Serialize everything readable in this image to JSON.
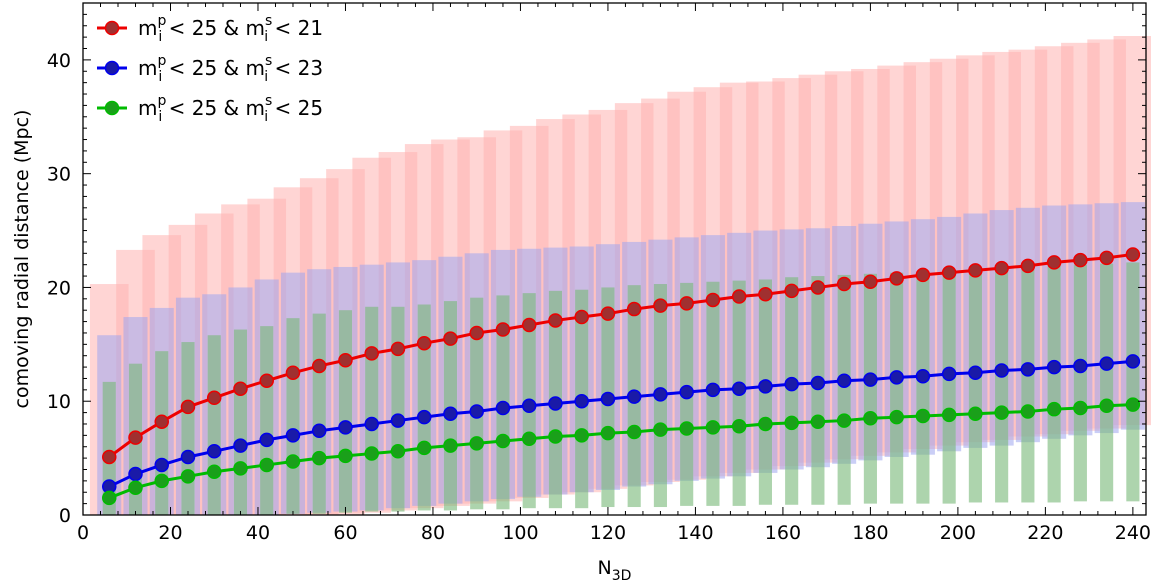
{
  "chart_data": {
    "type": "line",
    "xlabel": "N",
    "xlabel_sub": "3D",
    "ylabel": "comoving radial distance (Mpc)",
    "xlim": [
      0,
      243
    ],
    "ylim": [
      0,
      45
    ],
    "xticks": [
      0,
      20,
      40,
      60,
      80,
      100,
      120,
      140,
      160,
      180,
      200,
      220,
      240
    ],
    "yticks": [
      0,
      10,
      20,
      30,
      40
    ],
    "x": [
      6,
      12,
      18,
      24,
      30,
      36,
      42,
      48,
      54,
      60,
      66,
      72,
      78,
      84,
      90,
      96,
      102,
      108,
      114,
      120,
      126,
      132,
      138,
      144,
      150,
      156,
      162,
      168,
      174,
      180,
      186,
      192,
      198,
      204,
      210,
      216,
      222,
      228,
      234,
      240
    ],
    "series": [
      {
        "name": "m_i^p < 25 & m_i^s < 21",
        "legend_main": "m",
        "legend_sub": "i",
        "legend_sup1": "p",
        "legend_mid": " < 25 & m",
        "legend_sub2": "i",
        "legend_sup2": "s",
        "legend_end": " < 21",
        "color": "#ee0000",
        "marker_color": "#a03030",
        "band_color": "#ffb3b0",
        "values": [
          5.1,
          6.8,
          8.2,
          9.5,
          10.3,
          11.1,
          11.8,
          12.5,
          13.1,
          13.6,
          14.2,
          14.6,
          15.1,
          15.5,
          16.0,
          16.3,
          16.7,
          17.1,
          17.4,
          17.7,
          18.1,
          18.4,
          18.6,
          18.9,
          19.2,
          19.4,
          19.7,
          20.0,
          20.3,
          20.5,
          20.8,
          21.1,
          21.3,
          21.5,
          21.7,
          21.9,
          22.2,
          22.4,
          22.6,
          22.9
        ],
        "band_low": [
          0,
          0,
          0,
          0,
          0,
          0,
          0,
          0,
          0,
          0,
          0.2,
          0.4,
          0.6,
          0.8,
          1.0,
          1.2,
          1.5,
          1.8,
          2.0,
          2.3,
          2.6,
          2.9,
          3.1,
          3.4,
          3.7,
          4.0,
          4.3,
          4.6,
          4.9,
          5.2,
          5.5,
          5.8,
          6.1,
          6.4,
          6.6,
          6.9,
          7.1,
          7.4,
          7.6,
          7.9
        ],
        "band_high": [
          20.3,
          23.3,
          24.6,
          25.5,
          26.5,
          27.3,
          27.8,
          28.8,
          29.6,
          30.4,
          31.4,
          31.9,
          32.6,
          33.0,
          33.2,
          33.8,
          34.2,
          34.8,
          35.2,
          35.6,
          36.2,
          36.6,
          37.2,
          37.6,
          38.0,
          38.1,
          38.4,
          38.7,
          39.0,
          39.2,
          39.5,
          39.8,
          40.1,
          40.4,
          40.7,
          40.9,
          41.2,
          41.5,
          41.8,
          42.1
        ]
      },
      {
        "name": "m_i^p < 25 & m_i^s < 23",
        "legend_main": "m",
        "legend_sub": "i",
        "legend_sup1": "p",
        "legend_mid": " < 25 & m",
        "legend_sub2": "i",
        "legend_sup2": "s",
        "legend_end": " < 23",
        "color": "#0000ee",
        "marker_color": "#1a1aa8",
        "band_color": "#9fa6ee",
        "values": [
          2.5,
          3.6,
          4.4,
          5.1,
          5.6,
          6.1,
          6.6,
          7.0,
          7.4,
          7.7,
          8.0,
          8.3,
          8.6,
          8.9,
          9.1,
          9.4,
          9.6,
          9.8,
          10.0,
          10.2,
          10.4,
          10.6,
          10.8,
          11.0,
          11.1,
          11.3,
          11.5,
          11.6,
          11.8,
          11.9,
          12.1,
          12.2,
          12.4,
          12.5,
          12.7,
          12.8,
          13.0,
          13.1,
          13.3,
          13.5
        ],
        "band_low": [
          0,
          0,
          0,
          0,
          0,
          0,
          0,
          0.1,
          0.2,
          0.3,
          0.4,
          0.6,
          0.8,
          1.0,
          1.2,
          1.4,
          1.6,
          1.8,
          2.0,
          2.2,
          2.5,
          2.7,
          3.0,
          3.2,
          3.4,
          3.7,
          4.0,
          4.2,
          4.5,
          4.8,
          5.1,
          5.3,
          5.6,
          5.9,
          6.1,
          6.4,
          6.7,
          7.0,
          7.2,
          7.5
        ],
        "band_high": [
          15.8,
          17.4,
          18.2,
          19.1,
          19.4,
          20.0,
          20.7,
          21.3,
          21.6,
          21.8,
          22.0,
          22.2,
          22.4,
          22.7,
          23.0,
          23.3,
          23.4,
          23.5,
          23.6,
          23.8,
          24.0,
          24.2,
          24.4,
          24.6,
          24.8,
          25.0,
          25.1,
          25.2,
          25.4,
          25.6,
          25.8,
          26.0,
          26.2,
          26.5,
          26.8,
          27.0,
          27.2,
          27.3,
          27.4,
          27.5
        ]
      },
      {
        "name": "m_i^p < 25 & m_i^s < 25",
        "legend_main": "m",
        "legend_sub": "i",
        "legend_sup1": "p",
        "legend_mid": " < 25 & m",
        "legend_sub2": "i",
        "legend_sup2": "s",
        "legend_end": " < 25",
        "color": "#00bb00",
        "marker_color": "#1aa01a",
        "band_color": "#77b877",
        "values": [
          1.5,
          2.4,
          3.0,
          3.4,
          3.8,
          4.1,
          4.4,
          4.7,
          5.0,
          5.2,
          5.4,
          5.6,
          5.9,
          6.1,
          6.3,
          6.5,
          6.7,
          6.9,
          7.0,
          7.2,
          7.3,
          7.5,
          7.6,
          7.7,
          7.8,
          8.0,
          8.1,
          8.2,
          8.3,
          8.5,
          8.6,
          8.7,
          8.8,
          8.9,
          9.0,
          9.1,
          9.3,
          9.4,
          9.6,
          9.7
        ],
        "band_low": [
          0,
          0,
          0,
          0,
          0,
          0,
          0,
          0.1,
          0.1,
          0.2,
          0.3,
          0.3,
          0.4,
          0.4,
          0.5,
          0.5,
          0.6,
          0.6,
          0.6,
          0.7,
          0.7,
          0.7,
          0.8,
          0.8,
          0.8,
          0.9,
          0.9,
          0.9,
          0.9,
          1.0,
          1.0,
          1.0,
          1.0,
          1.1,
          1.1,
          1.1,
          1.1,
          1.2,
          1.2,
          1.2
        ],
        "band_high": [
          11.7,
          13.3,
          14.4,
          15.2,
          15.8,
          16.3,
          16.6,
          17.3,
          17.7,
          18.0,
          18.3,
          18.3,
          18.5,
          18.8,
          19.1,
          19.3,
          19.5,
          19.7,
          19.8,
          20.0,
          20.2,
          20.3,
          20.4,
          20.5,
          20.6,
          20.7,
          20.9,
          21.0,
          21.1,
          21.2,
          21.3,
          21.4,
          21.5,
          21.6,
          21.7,
          21.8,
          21.9,
          22.0,
          22.1,
          22.2
        ]
      }
    ],
    "grid": false,
    "legend_position": "top-left"
  }
}
